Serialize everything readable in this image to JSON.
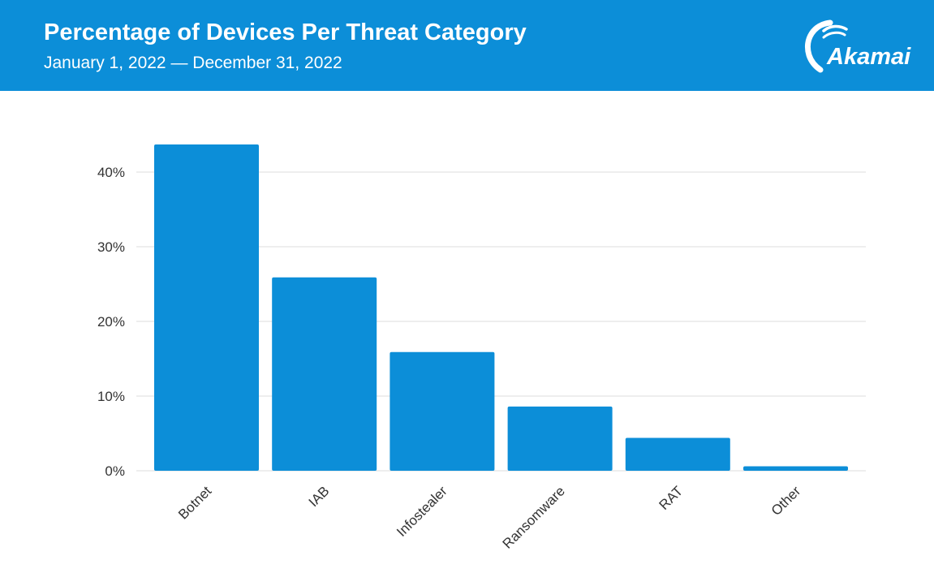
{
  "header": {
    "title": "Percentage of Devices Per Threat Category",
    "subtitle": "January 1, 2022 — December 31, 2022",
    "logo_text": "Akamai",
    "background_color": "#0c8ed8"
  },
  "chart_data": {
    "type": "bar",
    "title": "Percentage of Devices Per Threat Category",
    "subtitle": "January 1, 2022 — December 31, 2022",
    "categories": [
      "Botnet",
      "IAB",
      "Infostealer",
      "Ransomware",
      "RAT",
      "Other"
    ],
    "values": [
      43.7,
      25.9,
      15.9,
      8.6,
      4.4,
      0.6
    ],
    "unit": "%",
    "ylim": [
      0,
      40
    ],
    "yticks": [
      0,
      10,
      20,
      30,
      40
    ],
    "ytick_labels": [
      "0%",
      "10%",
      "20%",
      "30%",
      "40%"
    ],
    "xlabel": "",
    "ylabel": "",
    "grid": true,
    "bar_color": "#0c8ed8",
    "grid_color": "#dddddd"
  }
}
